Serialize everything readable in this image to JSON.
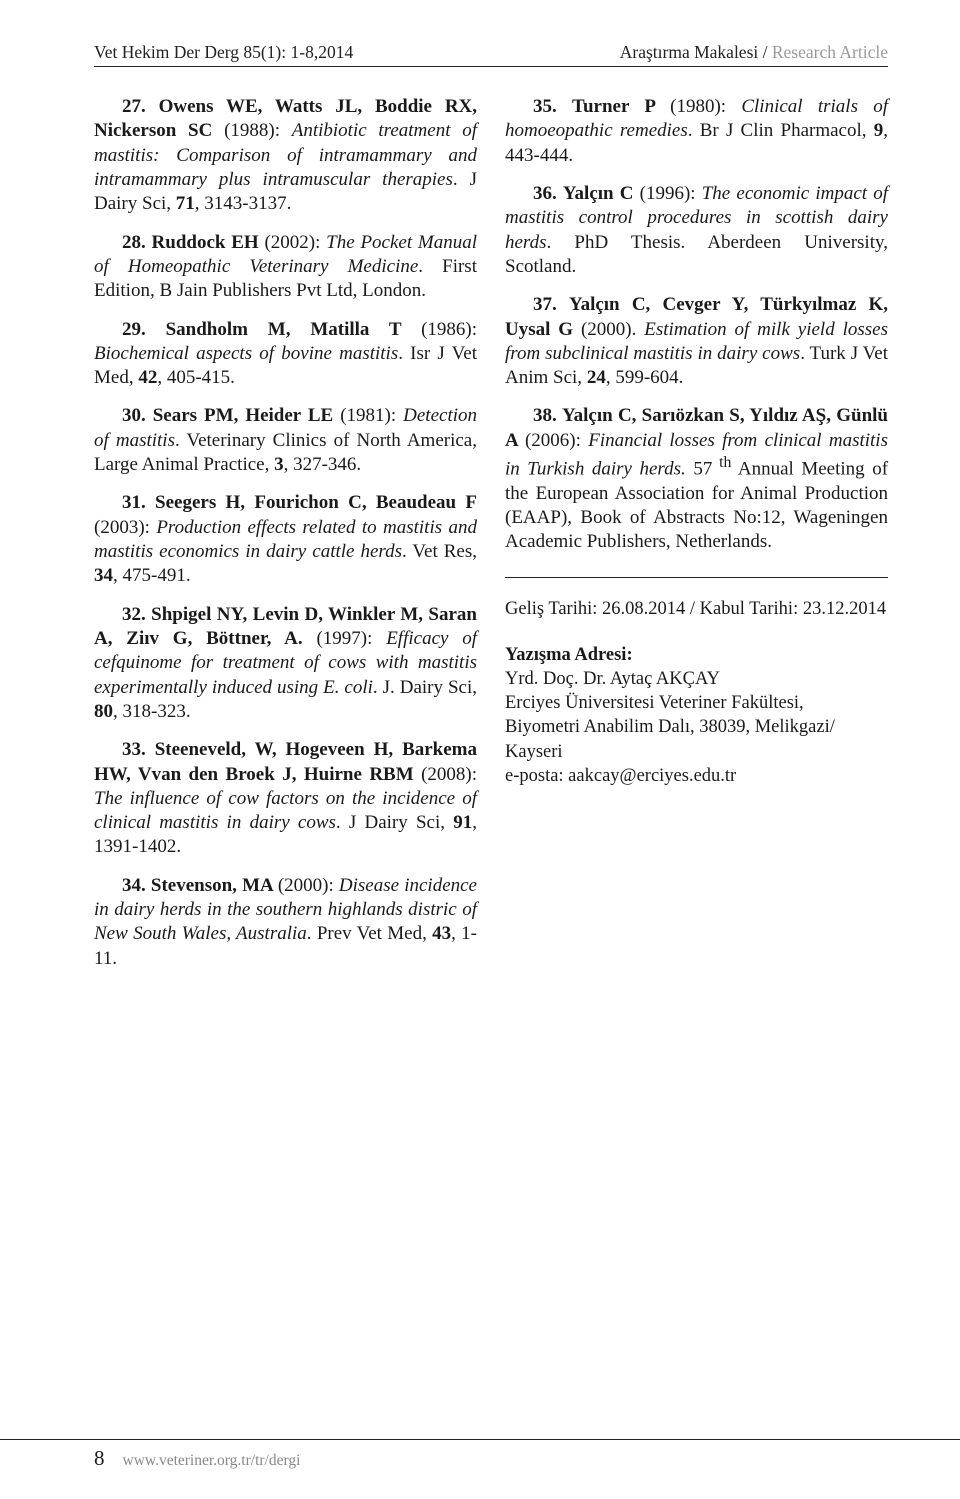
{
  "header": {
    "left": "Vet Hekim Der Derg 85(1): 1-8,2014",
    "right_bold": "Araştırma Makalesi /",
    "right_grey": " Research Article"
  },
  "refs_left": [
    {
      "n": "27.",
      "auth": "Owens WE, Watts JL, Boddie RX, Nickerson SC ",
      "yr": "(1988): ",
      "title": "Antibiotic treatment of mastitis: Comparison of intramammary and intramammary plus intramuscular therapies",
      "tail": ". J Dairy Sci, ",
      "volbold": "71",
      "loc": ", 3143-3137."
    },
    {
      "n": "28.",
      "auth": "Ruddock EH ",
      "yr": "(2002): ",
      "title": "The Pocket Manual of Homeopathic Veterinary Medicine",
      "tail": ". First Edition, B Jain Publishers Pvt Ltd, London.",
      "volbold": "",
      "loc": ""
    },
    {
      "n": "29.",
      "auth": "Sandholm M, Matilla T ",
      "yr": "(1986): ",
      "title": "Biochemical aspects of bovine mastitis",
      "tail": ". Isr J Vet Med, ",
      "volbold": "42",
      "loc": ", 405-415."
    },
    {
      "n": "30.",
      "auth": "Sears PM,  Heider LE ",
      "yr": "(1981): ",
      "title": "Detection of mastitis",
      "tail": ". Veterinary Clinics of North America, Large Animal Practice, ",
      "volbold": "3",
      "loc": ", 327-346."
    },
    {
      "n": "31.",
      "auth": "Seegers H, Fourichon C, Beaudeau F ",
      "yr": "(2003): ",
      "title": "Production effects related to mastitis and mastitis economics in dairy cattle herds",
      "tail": ". Vet Res, ",
      "volbold": "34",
      "loc": ", 475-491."
    },
    {
      "n": "32.",
      "auth": "Shpigel NY, Levin D, Winkler  M, Saran A, Ziıv G,  Böttner, A. ",
      "yr": "(1997): ",
      "title": "Efficacy of cefquinome for treatment of cows with mastitis experimentally induced using E. coli",
      "tail": ". J. Dairy Sci, ",
      "volbold": "80",
      "loc": ", 318-323."
    },
    {
      "n": "33.",
      "auth": "Steeneveld, W, Hogeveen H, Barkema HW, Vvan den Broek J, Huirne  RBM ",
      "yr": "(2008): ",
      "title": "The influence of cow factors on the incidence of clinical mastitis in dairy cows",
      "tail": ". J Dairy Sci, ",
      "volbold": "91",
      "loc": ", 1391-1402."
    },
    {
      "n": "34.",
      "auth": "Stevenson, MA ",
      "yr": "(2000): ",
      "title": "Disease incidence in dairy herds in the southern highlands distric of New South Wales, Australia",
      "tail": ". Prev Vet Med, ",
      "volbold": "43",
      "loc": ", 1-11."
    }
  ],
  "refs_right": [
    {
      "n": "35.",
      "auth": "Turner P ",
      "yr": "(1980): ",
      "title": "Clinical trials of homoeopathic remedies",
      "tail": ". Br J Clin Pharmacol, ",
      "volbold": "9",
      "loc": ", 443-444."
    },
    {
      "n": "36.",
      "auth": "Yalçın C  ",
      "yr": "(1996): ",
      "title": "The economic impact of mastitis control procedures in scottish dairy herds",
      "tail": ". PhD Thesis. Aberdeen University, Scotland.",
      "volbold": "",
      "loc": ""
    },
    {
      "n": "37.",
      "auth": "Yalçın C, Cevger Y, Türkyılmaz K, Uysal G ",
      "yr": "(2000). ",
      "title": "Estimation of milk yield losses from subclinical mastitis in dairy cows",
      "tail": ". Turk J Vet Anim Sci, ",
      "volbold": "24",
      "loc": ", 599-604."
    }
  ],
  "ref38": {
    "n": "38.",
    "auth": "Yalçın C, Sarıözkan S, Yıldız AŞ, Günlü A ",
    "yr": "(2006): ",
    "title": "Financial losses from clinical mastitis in Turkish dairy herds.",
    "tail_a": " 57",
    "sup": " th",
    "tail_b": " Annual Meeting of the European Association for Animal Production (EAAP), Book of Abstracts No:12, Wageningen Academic Publishers, Netherlands."
  },
  "dates": "Geliş Tarihi: 26.08.2014 / Kabul Tarihi: 23.12.2014",
  "address": {
    "heading": "Yazışma Adresi:",
    "l1": "Yrd. Doç. Dr. Aytaç AKÇAY",
    "l2": "Erciyes Üniversitesi Veteriner Fakültesi,",
    "l3": "Biyometri Anabilim Dalı, 38039, Melikgazi/ Kayseri",
    "l4": "e-posta: aakcay@erciyes.edu.tr"
  },
  "footer": {
    "page": "8",
    "url": "www.veteriner.org.tr/tr/dergi"
  }
}
